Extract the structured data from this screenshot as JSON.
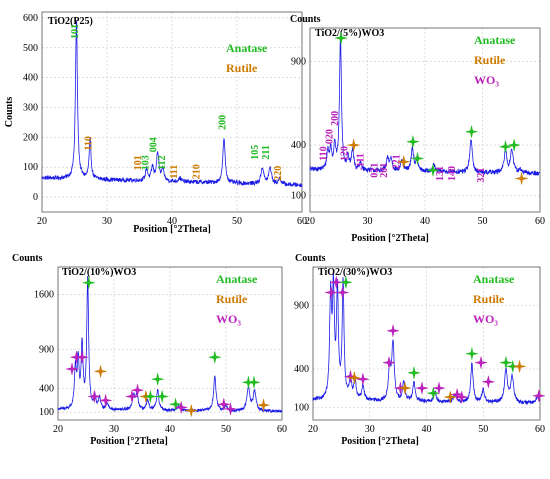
{
  "chart_data": [
    {
      "type": "line",
      "title": "TiO2(P25)",
      "xlabel": "Position [°2Theta]",
      "ylabel": "Counts",
      "xlim": [
        20,
        60
      ],
      "ylim": [
        -50,
        620
      ],
      "xticks": [
        20,
        30,
        40,
        50,
        60
      ],
      "yticks": [
        0,
        100,
        200,
        300,
        400,
        500,
        600
      ],
      "legend": [
        {
          "label": "Anatase",
          "color": "#22bb22"
        },
        {
          "label": "Rutile",
          "color": "#cc7a00"
        }
      ],
      "legend_position": "top-right",
      "line_color": "#1a1ae6",
      "baseline": 40,
      "noise": 7,
      "peaks": [
        {
          "x": 25.3,
          "h": 535,
          "w": 0.18
        },
        {
          "x": 27.4,
          "h": 130,
          "w": 0.18
        },
        {
          "x": 36.1,
          "h": 40,
          "w": 0.2
        },
        {
          "x": 37.0,
          "h": 45,
          "w": 0.2
        },
        {
          "x": 37.8,
          "h": 95,
          "w": 0.22
        },
        {
          "x": 38.6,
          "h": 40,
          "w": 0.2
        },
        {
          "x": 41.2,
          "h": 12,
          "w": 0.25
        },
        {
          "x": 48.0,
          "h": 145,
          "w": 0.22
        },
        {
          "x": 53.9,
          "h": 55,
          "w": 0.25
        },
        {
          "x": 55.1,
          "h": 55,
          "w": 0.25
        },
        {
          "x": 56.6,
          "h": 20,
          "w": 0.25
        }
      ],
      "annotations": [
        {
          "text": "101",
          "x": 25.5,
          "y": 555,
          "color": "#22bb22"
        },
        {
          "text": "110",
          "x": 27.6,
          "y": 180,
          "color": "#cc7a00"
        },
        {
          "text": "101",
          "x": 35.2,
          "y": 115,
          "color": "#cc7a00"
        },
        {
          "text": "103",
          "x": 36.4,
          "y": 115,
          "color": "#22bb22"
        },
        {
          "text": "004",
          "x": 37.6,
          "y": 175,
          "color": "#22bb22"
        },
        {
          "text": "112",
          "x": 38.9,
          "y": 115,
          "color": "#22bb22"
        },
        {
          "text": "111",
          "x": 40.8,
          "y": 85,
          "color": "#cc7a00"
        },
        {
          "text": "210",
          "x": 44.2,
          "y": 85,
          "color": "#cc7a00"
        },
        {
          "text": "200",
          "x": 48.2,
          "y": 250,
          "color": "#22bb22"
        },
        {
          "text": "105",
          "x": 53.2,
          "y": 150,
          "color": "#22bb22"
        },
        {
          "text": "211",
          "x": 54.9,
          "y": 150,
          "color": "#22bb22"
        },
        {
          "text": "220",
          "x": 56.8,
          "y": 80,
          "color": "#cc7a00"
        }
      ],
      "markers": []
    },
    {
      "type": "line",
      "title": "TiO2/(5%)WO3",
      "title_prefix": "Counts",
      "xlabel": "Position [°2Theta]",
      "ylabel": "",
      "xlim": [
        20,
        60
      ],
      "ylim": [
        0,
        1100
      ],
      "xticks": [
        20,
        30,
        40,
        50,
        60
      ],
      "yticks": [
        100,
        400,
        900
      ],
      "legend": [
        {
          "label": "Anatase",
          "color": "#22bb22"
        },
        {
          "label": "Rutile",
          "color": "#cc7a00"
        },
        {
          "label": "WO₃",
          "color": "#bb22bb"
        }
      ],
      "legend_position": "top-right",
      "line_color": "#1a1ae6",
      "baseline": 230,
      "noise": 14,
      "peaks": [
        {
          "x": 23.1,
          "h": 110,
          "w": 0.2
        },
        {
          "x": 23.6,
          "h": 120,
          "w": 0.2
        },
        {
          "x": 24.3,
          "h": 150,
          "w": 0.2
        },
        {
          "x": 25.3,
          "h": 800,
          "w": 0.2
        },
        {
          "x": 26.6,
          "h": 70,
          "w": 0.2
        },
        {
          "x": 27.4,
          "h": 120,
          "w": 0.22
        },
        {
          "x": 28.8,
          "h": 40,
          "w": 0.25
        },
        {
          "x": 33.5,
          "h": 70,
          "w": 0.25
        },
        {
          "x": 34.1,
          "h": 70,
          "w": 0.25
        },
        {
          "x": 36.0,
          "h": 60,
          "w": 0.25
        },
        {
          "x": 37.8,
          "h": 140,
          "w": 0.25
        },
        {
          "x": 38.6,
          "h": 60,
          "w": 0.25
        },
        {
          "x": 41.5,
          "h": 45,
          "w": 0.25
        },
        {
          "x": 48.0,
          "h": 200,
          "w": 0.25
        },
        {
          "x": 54.0,
          "h": 130,
          "w": 0.28
        },
        {
          "x": 55.1,
          "h": 140,
          "w": 0.28
        },
        {
          "x": 56.5,
          "h": 20,
          "w": 0.28
        }
      ],
      "annotations": [
        {
          "text": "110",
          "x": 22.9,
          "y": 350,
          "color": "#bb22bb"
        },
        {
          "text": "020",
          "x": 23.9,
          "y": 450,
          "color": "#bb22bb"
        },
        {
          "text": "200",
          "x": 24.9,
          "y": 560,
          "color": "#bb22bb"
        },
        {
          "text": "120",
          "x": 26.5,
          "y": 350,
          "color": "#bb22bb"
        },
        {
          "text": "-111",
          "x": 29.3,
          "y": 300,
          "color": "#bb22bb"
        },
        {
          "text": "021",
          "x": 31.7,
          "y": 250,
          "color": "#bb22bb"
        },
        {
          "text": "201",
          "x": 33.4,
          "y": 250,
          "color": "#bb22bb"
        },
        {
          "text": "221",
          "x": 35.6,
          "y": 300,
          "color": "#bb22bb"
        },
        {
          "text": "131",
          "x": 43.1,
          "y": 230,
          "color": "#bb22bb"
        },
        {
          "text": "140",
          "x": 45.2,
          "y": 230,
          "color": "#bb22bb"
        },
        {
          "text": "321",
          "x": 50.3,
          "y": 220,
          "color": "#bb22bb"
        }
      ],
      "markers": [
        {
          "x": 25.4,
          "y": 1040,
          "color": "#22bb22"
        },
        {
          "x": 27.6,
          "y": 400,
          "color": "#cc7a00"
        },
        {
          "x": 36.3,
          "y": 300,
          "color": "#cc7a00"
        },
        {
          "x": 37.9,
          "y": 420,
          "color": "#22bb22"
        },
        {
          "x": 38.7,
          "y": 320,
          "color": "#22bb22"
        },
        {
          "x": 41.4,
          "y": 250,
          "color": "#22bb22"
        },
        {
          "x": 48.1,
          "y": 480,
          "color": "#22bb22"
        },
        {
          "x": 54.0,
          "y": 390,
          "color": "#22bb22"
        },
        {
          "x": 55.5,
          "y": 400,
          "color": "#22bb22"
        },
        {
          "x": 56.8,
          "y": 200,
          "color": "#cc7a00"
        }
      ]
    },
    {
      "type": "line",
      "title": "TiO2/(10%)WO3",
      "title_prefix": "Counts",
      "xlabel": "Position [°2Theta]",
      "ylabel": "",
      "xlim": [
        20,
        60
      ],
      "ylim": [
        0,
        1950
      ],
      "xticks": [
        20,
        30,
        40,
        50,
        60
      ],
      "yticks": [
        100,
        400,
        900,
        1600
      ],
      "legend": [
        {
          "label": "Anatase",
          "color": "#22bb22"
        },
        {
          "label": "Rutile",
          "color": "#cc7a00"
        },
        {
          "label": "WO₃",
          "color": "#bb22bb"
        }
      ],
      "legend_position": "top-right",
      "line_color": "#1a1ae6",
      "baseline": 110,
      "noise": 18,
      "peaks": [
        {
          "x": 23.1,
          "h": 500,
          "w": 0.2
        },
        {
          "x": 23.6,
          "h": 600,
          "w": 0.2
        },
        {
          "x": 24.3,
          "h": 800,
          "w": 0.2
        },
        {
          "x": 25.3,
          "h": 1650,
          "w": 0.2
        },
        {
          "x": 26.6,
          "h": 150,
          "w": 0.2
        },
        {
          "x": 27.4,
          "h": 150,
          "w": 0.22
        },
        {
          "x": 28.8,
          "h": 80,
          "w": 0.25
        },
        {
          "x": 33.5,
          "h": 180,
          "w": 0.25
        },
        {
          "x": 34.1,
          "h": 200,
          "w": 0.25
        },
        {
          "x": 36.0,
          "h": 120,
          "w": 0.25
        },
        {
          "x": 37.8,
          "h": 250,
          "w": 0.25
        },
        {
          "x": 41.5,
          "h": 60,
          "w": 0.25
        },
        {
          "x": 48.0,
          "h": 450,
          "w": 0.25
        },
        {
          "x": 50.0,
          "h": 60,
          "w": 0.28
        },
        {
          "x": 54.0,
          "h": 300,
          "w": 0.3
        },
        {
          "x": 55.1,
          "h": 250,
          "w": 0.3
        }
      ],
      "annotations": [],
      "markers": [
        {
          "x": 22.5,
          "y": 650,
          "color": "#bb22bb"
        },
        {
          "x": 23.3,
          "y": 800,
          "color": "#bb22bb"
        },
        {
          "x": 24.3,
          "y": 800,
          "color": "#bb22bb"
        },
        {
          "x": 25.5,
          "y": 1750,
          "color": "#22bb22"
        },
        {
          "x": 26.5,
          "y": 300,
          "color": "#bb22bb"
        },
        {
          "x": 27.6,
          "y": 620,
          "color": "#cc7a00"
        },
        {
          "x": 28.5,
          "y": 250,
          "color": "#bb22bb"
        },
        {
          "x": 33.2,
          "y": 300,
          "color": "#bb22bb"
        },
        {
          "x": 34.2,
          "y": 380,
          "color": "#bb22bb"
        },
        {
          "x": 35.7,
          "y": 300,
          "color": "#cc7a00"
        },
        {
          "x": 36.5,
          "y": 300,
          "color": "#22bb22"
        },
        {
          "x": 37.8,
          "y": 520,
          "color": "#22bb22"
        },
        {
          "x": 38.6,
          "y": 300,
          "color": "#22bb22"
        },
        {
          "x": 41.0,
          "y": 200,
          "color": "#22bb22"
        },
        {
          "x": 42.0,
          "y": 160,
          "color": "#bb22bb"
        },
        {
          "x": 43.8,
          "y": 120,
          "color": "#cc7a00"
        },
        {
          "x": 48.0,
          "y": 800,
          "color": "#22bb22"
        },
        {
          "x": 49.6,
          "y": 200,
          "color": "#bb22bb"
        },
        {
          "x": 50.8,
          "y": 140,
          "color": "#bb22bb"
        },
        {
          "x": 54.0,
          "y": 480,
          "color": "#22bb22"
        },
        {
          "x": 55.0,
          "y": 480,
          "color": "#22bb22"
        },
        {
          "x": 56.7,
          "y": 190,
          "color": "#cc7a00"
        }
      ]
    },
    {
      "type": "line",
      "title": "TiO2/(30%)WO3",
      "title_prefix": "Counts",
      "xlabel": "Position [°2Theta]",
      "ylabel": "",
      "xlim": [
        20,
        60
      ],
      "ylim": [
        0,
        1200
      ],
      "xticks": [
        20,
        30,
        40,
        50,
        60
      ],
      "yticks": [
        100,
        400,
        900
      ],
      "legend": [
        {
          "label": "Anatase",
          "color": "#22bb22"
        },
        {
          "label": "Rutile",
          "color": "#cc7a00"
        },
        {
          "label": "WO₃",
          "color": "#bb22bb"
        }
      ],
      "legend_position": "top-right",
      "line_color": "#1a1ae6",
      "baseline": 130,
      "noise": 14,
      "peaks": [
        {
          "x": 23.1,
          "h": 780,
          "w": 0.2
        },
        {
          "x": 23.6,
          "h": 820,
          "w": 0.2
        },
        {
          "x": 24.3,
          "h": 840,
          "w": 0.2
        },
        {
          "x": 25.3,
          "h": 900,
          "w": 0.2
        },
        {
          "x": 26.6,
          "h": 180,
          "w": 0.22
        },
        {
          "x": 27.4,
          "h": 160,
          "w": 0.22
        },
        {
          "x": 28.8,
          "h": 120,
          "w": 0.25
        },
        {
          "x": 33.5,
          "h": 250,
          "w": 0.25
        },
        {
          "x": 34.1,
          "h": 450,
          "w": 0.25
        },
        {
          "x": 36.0,
          "h": 150,
          "w": 0.25
        },
        {
          "x": 37.8,
          "h": 150,
          "w": 0.25
        },
        {
          "x": 41.5,
          "h": 80,
          "w": 0.25
        },
        {
          "x": 45.0,
          "h": 60,
          "w": 0.3
        },
        {
          "x": 48.0,
          "h": 300,
          "w": 0.25
        },
        {
          "x": 50.0,
          "h": 100,
          "w": 0.28
        },
        {
          "x": 54.0,
          "h": 260,
          "w": 0.3
        },
        {
          "x": 55.1,
          "h": 200,
          "w": 0.3
        },
        {
          "x": 59.5,
          "h": 50,
          "w": 0.3
        }
      ],
      "annotations": [],
      "markers": [
        {
          "x": 23.2,
          "y": 1000,
          "color": "#bb22bb"
        },
        {
          "x": 24.1,
          "y": 1080,
          "color": "#bb22bb"
        },
        {
          "x": 25.2,
          "y": 1000,
          "color": "#bb22bb"
        },
        {
          "x": 25.8,
          "y": 1080,
          "color": "#22bb22"
        },
        {
          "x": 26.6,
          "y": 340,
          "color": "#bb22bb"
        },
        {
          "x": 27.3,
          "y": 330,
          "color": "#cc7a00"
        },
        {
          "x": 28.8,
          "y": 320,
          "color": "#bb22bb"
        },
        {
          "x": 33.4,
          "y": 450,
          "color": "#bb22bb"
        },
        {
          "x": 34.1,
          "y": 700,
          "color": "#bb22bb"
        },
        {
          "x": 35.4,
          "y": 250,
          "color": "#bb22bb"
        },
        {
          "x": 36.2,
          "y": 250,
          "color": "#cc7a00"
        },
        {
          "x": 37.8,
          "y": 370,
          "color": "#22bb22"
        },
        {
          "x": 39.2,
          "y": 250,
          "color": "#bb22bb"
        },
        {
          "x": 41.2,
          "y": 210,
          "color": "#22bb22"
        },
        {
          "x": 42.2,
          "y": 250,
          "color": "#bb22bb"
        },
        {
          "x": 44.2,
          "y": 180,
          "color": "#cc7a00"
        },
        {
          "x": 45.4,
          "y": 200,
          "color": "#bb22bb"
        },
        {
          "x": 46.2,
          "y": 180,
          "color": "#bb22bb"
        },
        {
          "x": 48.0,
          "y": 520,
          "color": "#22bb22"
        },
        {
          "x": 49.6,
          "y": 450,
          "color": "#bb22bb"
        },
        {
          "x": 50.9,
          "y": 300,
          "color": "#bb22bb"
        },
        {
          "x": 54.0,
          "y": 450,
          "color": "#22bb22"
        },
        {
          "x": 55.2,
          "y": 420,
          "color": "#22bb22"
        },
        {
          "x": 56.4,
          "y": 420,
          "color": "#cc7a00"
        },
        {
          "x": 59.8,
          "y": 190,
          "color": "#bb22bb"
        }
      ]
    }
  ]
}
